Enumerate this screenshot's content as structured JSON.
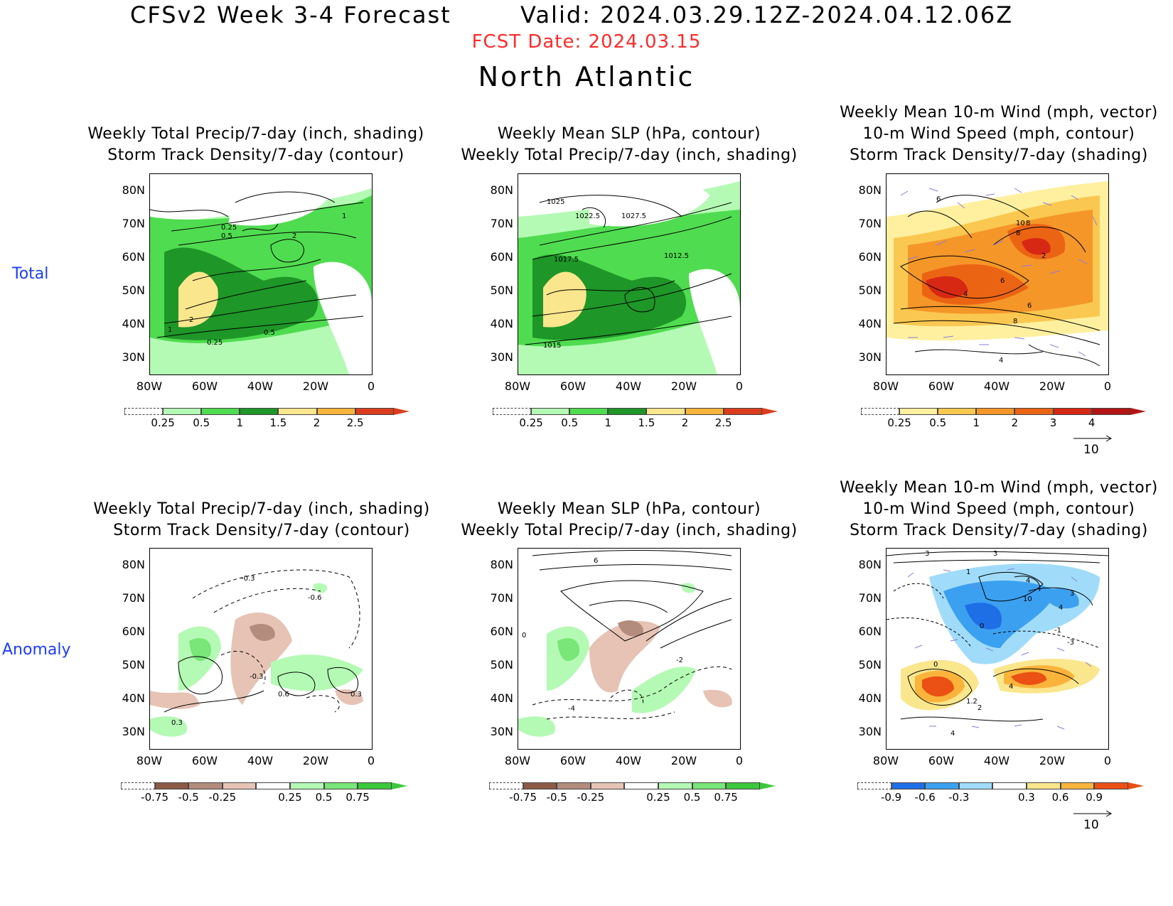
{
  "header": {
    "title": "CFSv2 Week 3-4 Forecast        Valid: 2024.03.29.12Z-2024.04.12.06Z",
    "fcst_date": "FCST Date: 2024.03.15",
    "region": "North Atlantic"
  },
  "rows": {
    "total_label": "Total",
    "anomaly_label": "Anomaly"
  },
  "titles": {
    "precip_storm": "Weekly Total Precip/7-day (inch, shading)\nStorm Track Density/7-day (contour)",
    "slp_precip": "Weekly Mean SLP (hPa, contour)\nWeekly Total Precip/7-day (inch, shading)",
    "wind": "Weekly Mean 10-m Wind (mph, vector)\n10-m Wind Speed (mph, contour)\nStorm Track Density/7-day (shading)"
  },
  "axes": {
    "lat_labels": [
      "80N",
      "70N",
      "60N",
      "50N",
      "40N",
      "30N"
    ],
    "lon_labels": [
      "80W",
      "60W",
      "40W",
      "20W",
      "0"
    ]
  },
  "colorbars": {
    "total_precip": {
      "labels": [
        "0.25",
        "0.5",
        "1",
        "1.5",
        "2",
        "2.5"
      ],
      "colors": [
        "#b4fab4",
        "#50dc50",
        "#1e9628",
        "#fae68c",
        "#fab43c",
        "#dc3c1e"
      ]
    },
    "total_storm": {
      "labels": [
        "0.25",
        "0.5",
        "1",
        "2",
        "3",
        "4"
      ],
      "colors": [
        "#fff0a0",
        "#fac850",
        "#f59628",
        "#eb6414",
        "#d72814",
        "#b41414"
      ]
    },
    "anom_precip": {
      "labels": [
        "-0.75",
        "-0.5",
        "-0.25",
        "0.25",
        "0.5",
        "0.75"
      ],
      "colors": [
        "#8c5a46",
        "#b48c7d",
        "#e6c3b4",
        "#ffffff",
        "#b4fab4",
        "#78e678",
        "#3cc83c"
      ]
    },
    "anom_storm": {
      "labels": [
        "-0.9",
        "-0.6",
        "-0.3",
        "0.3",
        "0.6",
        "0.9"
      ],
      "colors": [
        "#1e6ee6",
        "#3ca0f0",
        "#a0dcfa",
        "#ffffff",
        "#fae68c",
        "#fab43c",
        "#eb5014"
      ]
    }
  },
  "contour_labels": {
    "total_precip": [
      "0.25",
      "0.5",
      "1",
      "2",
      "2",
      "1",
      "0.25",
      "0.5"
    ],
    "total_slp": [
      "1025",
      "1022.5",
      "1027.5",
      "1017.5",
      "1012.5",
      "1015"
    ],
    "total_wind": [
      "6",
      "10",
      "8",
      "8",
      "2",
      "6",
      "4",
      "6",
      "8",
      "4"
    ],
    "anom_precip": [
      "-0.3",
      "-0.6",
      "-0.3",
      "0.6",
      "0.3",
      "0.3"
    ],
    "anom_slp": [
      "6",
      "-2",
      "-4",
      "0"
    ],
    "anom_wind": [
      "3",
      "3",
      "1",
      "4",
      "10",
      "3",
      "4",
      "0",
      "-1",
      "-3",
      "0",
      "4",
      "1.2",
      "2",
      "4"
    ]
  },
  "vector_reference": "10",
  "colors": {
    "land_green_light": "#b4fab4",
    "land_green_mid": "#50dc50",
    "land_green_dark": "#1e9628",
    "yellow": "#fae68c",
    "fcst_red": "#ff2a2a",
    "row_label_blue": "#1c3cff",
    "vector_purple": "#8a7ae0"
  }
}
